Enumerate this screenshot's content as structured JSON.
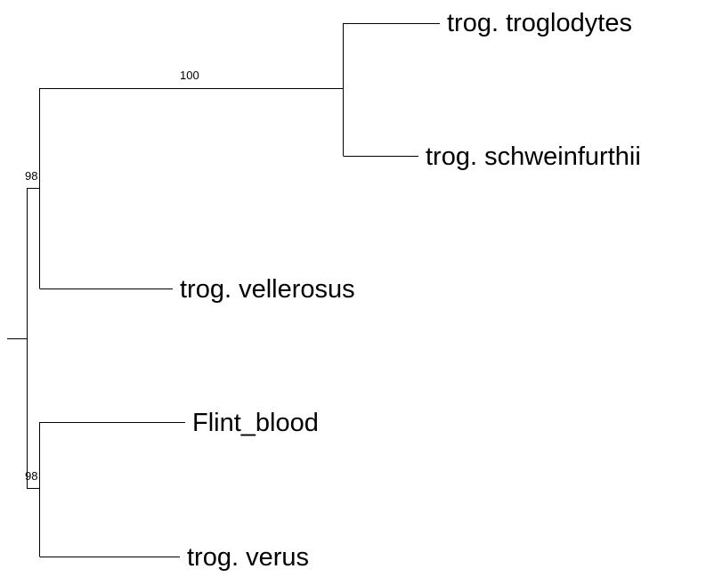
{
  "tree": {
    "line_color": "#000000",
    "taxa": {
      "troglodytes": "trog. troglodytes",
      "schweinfurthii": "trog. schweinfurthii",
      "vellerosus": "trog. vellerosus",
      "flint_blood": "Flint_blood",
      "verus": "trog. verus"
    },
    "support": {
      "troglodytes_schweinfurthii": "100",
      "upper_clade": "98",
      "lower_clade": "98"
    }
  }
}
